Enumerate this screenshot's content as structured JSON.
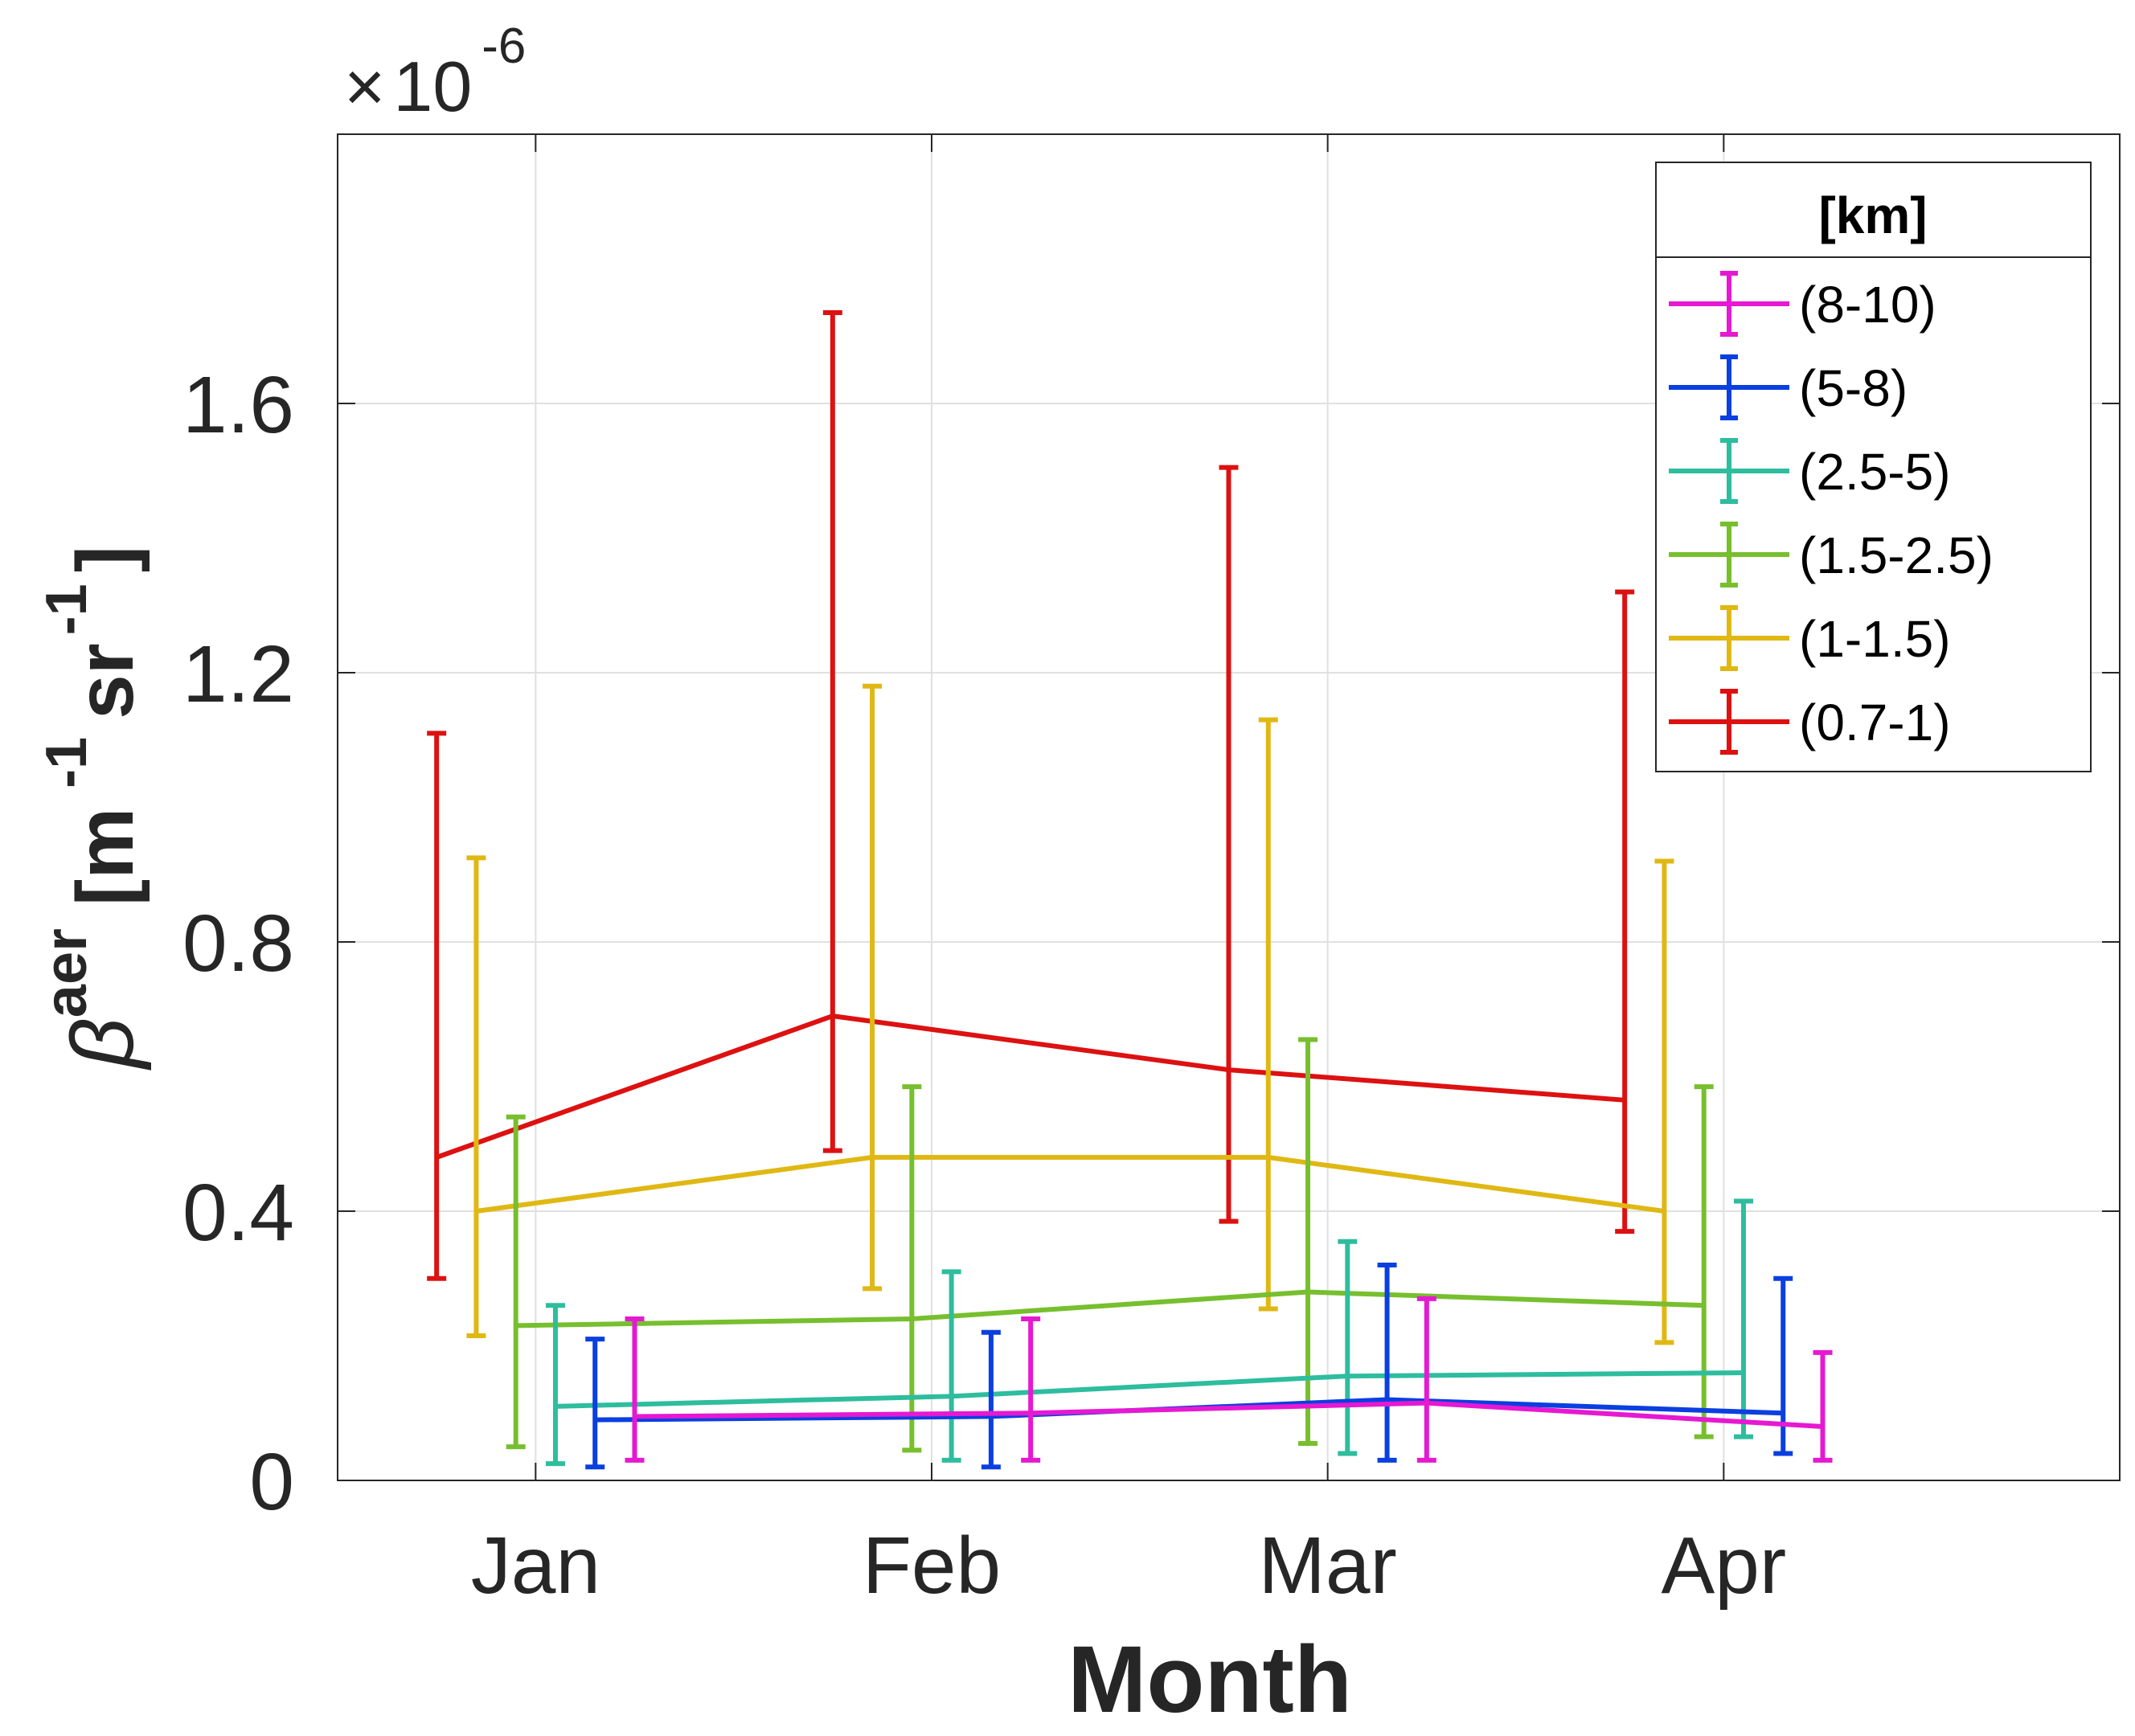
{
  "chart_data": {
    "type": "line",
    "title": "",
    "xlabel": "Month",
    "ylabel": {
      "symbol": "β",
      "superscript": "aer",
      "units_open": "[m",
      "unit_exp1": "-1",
      "units_mid": "sr",
      "unit_exp2": "-1",
      "units_close": "]"
    },
    "y_multiplier": {
      "times": "×",
      "base": "10",
      "exponent": "-6"
    },
    "categories": [
      "Jan",
      "Feb",
      "Mar",
      "Apr"
    ],
    "xlim": [
      0.5,
      5.0
    ],
    "ylim": [
      0,
      2.0
    ],
    "y_ticks": [
      0,
      0.4,
      0.8,
      1.2,
      1.6
    ],
    "y_tick_labels": [
      "0",
      "0.4",
      "0.8",
      "1.2",
      "1.6"
    ],
    "grid": true,
    "legend": {
      "title": "[km]",
      "position": "top-right"
    },
    "series": [
      {
        "name": "(8-10)",
        "color": "#e619d2",
        "offset": 0.25,
        "values": [
          0.095,
          0.1,
          0.115,
          0.08
        ],
        "lower": [
          0.03,
          0.03,
          0.03,
          0.03
        ],
        "upper": [
          0.24,
          0.24,
          0.27,
          0.19
        ]
      },
      {
        "name": "(5-8)",
        "color": "#0a3fe0",
        "offset": 0.15,
        "values": [
          0.09,
          0.095,
          0.12,
          0.1
        ],
        "lower": [
          0.02,
          0.02,
          0.03,
          0.04
        ],
        "upper": [
          0.21,
          0.22,
          0.32,
          0.3
        ]
      },
      {
        "name": "(2.5-5)",
        "color": "#2ebd9e",
        "offset": 0.05,
        "values": [
          0.11,
          0.125,
          0.155,
          0.16
        ],
        "lower": [
          0.025,
          0.03,
          0.04,
          0.065
        ],
        "upper": [
          0.26,
          0.31,
          0.355,
          0.415
        ]
      },
      {
        "name": "(1.5-2.5)",
        "color": "#77bf2e",
        "offset": -0.05,
        "values": [
          0.23,
          0.24,
          0.28,
          0.26
        ],
        "lower": [
          0.05,
          0.045,
          0.055,
          0.065
        ],
        "upper": [
          0.54,
          0.585,
          0.655,
          0.585
        ]
      },
      {
        "name": "(1-1.5)",
        "color": "#e0b814",
        "offset": -0.15,
        "values": [
          0.4,
          0.48,
          0.48,
          0.4
        ],
        "lower": [
          0.215,
          0.285,
          0.255,
          0.205
        ],
        "upper": [
          0.925,
          1.18,
          1.13,
          0.92
        ]
      },
      {
        "name": "(0.7-1)",
        "color": "#dd1111",
        "offset": -0.25,
        "values": [
          0.48,
          0.69,
          0.61,
          0.565
        ],
        "lower": [
          0.3,
          0.49,
          0.385,
          0.37
        ],
        "upper": [
          1.11,
          1.735,
          1.505,
          1.32
        ]
      }
    ]
  }
}
